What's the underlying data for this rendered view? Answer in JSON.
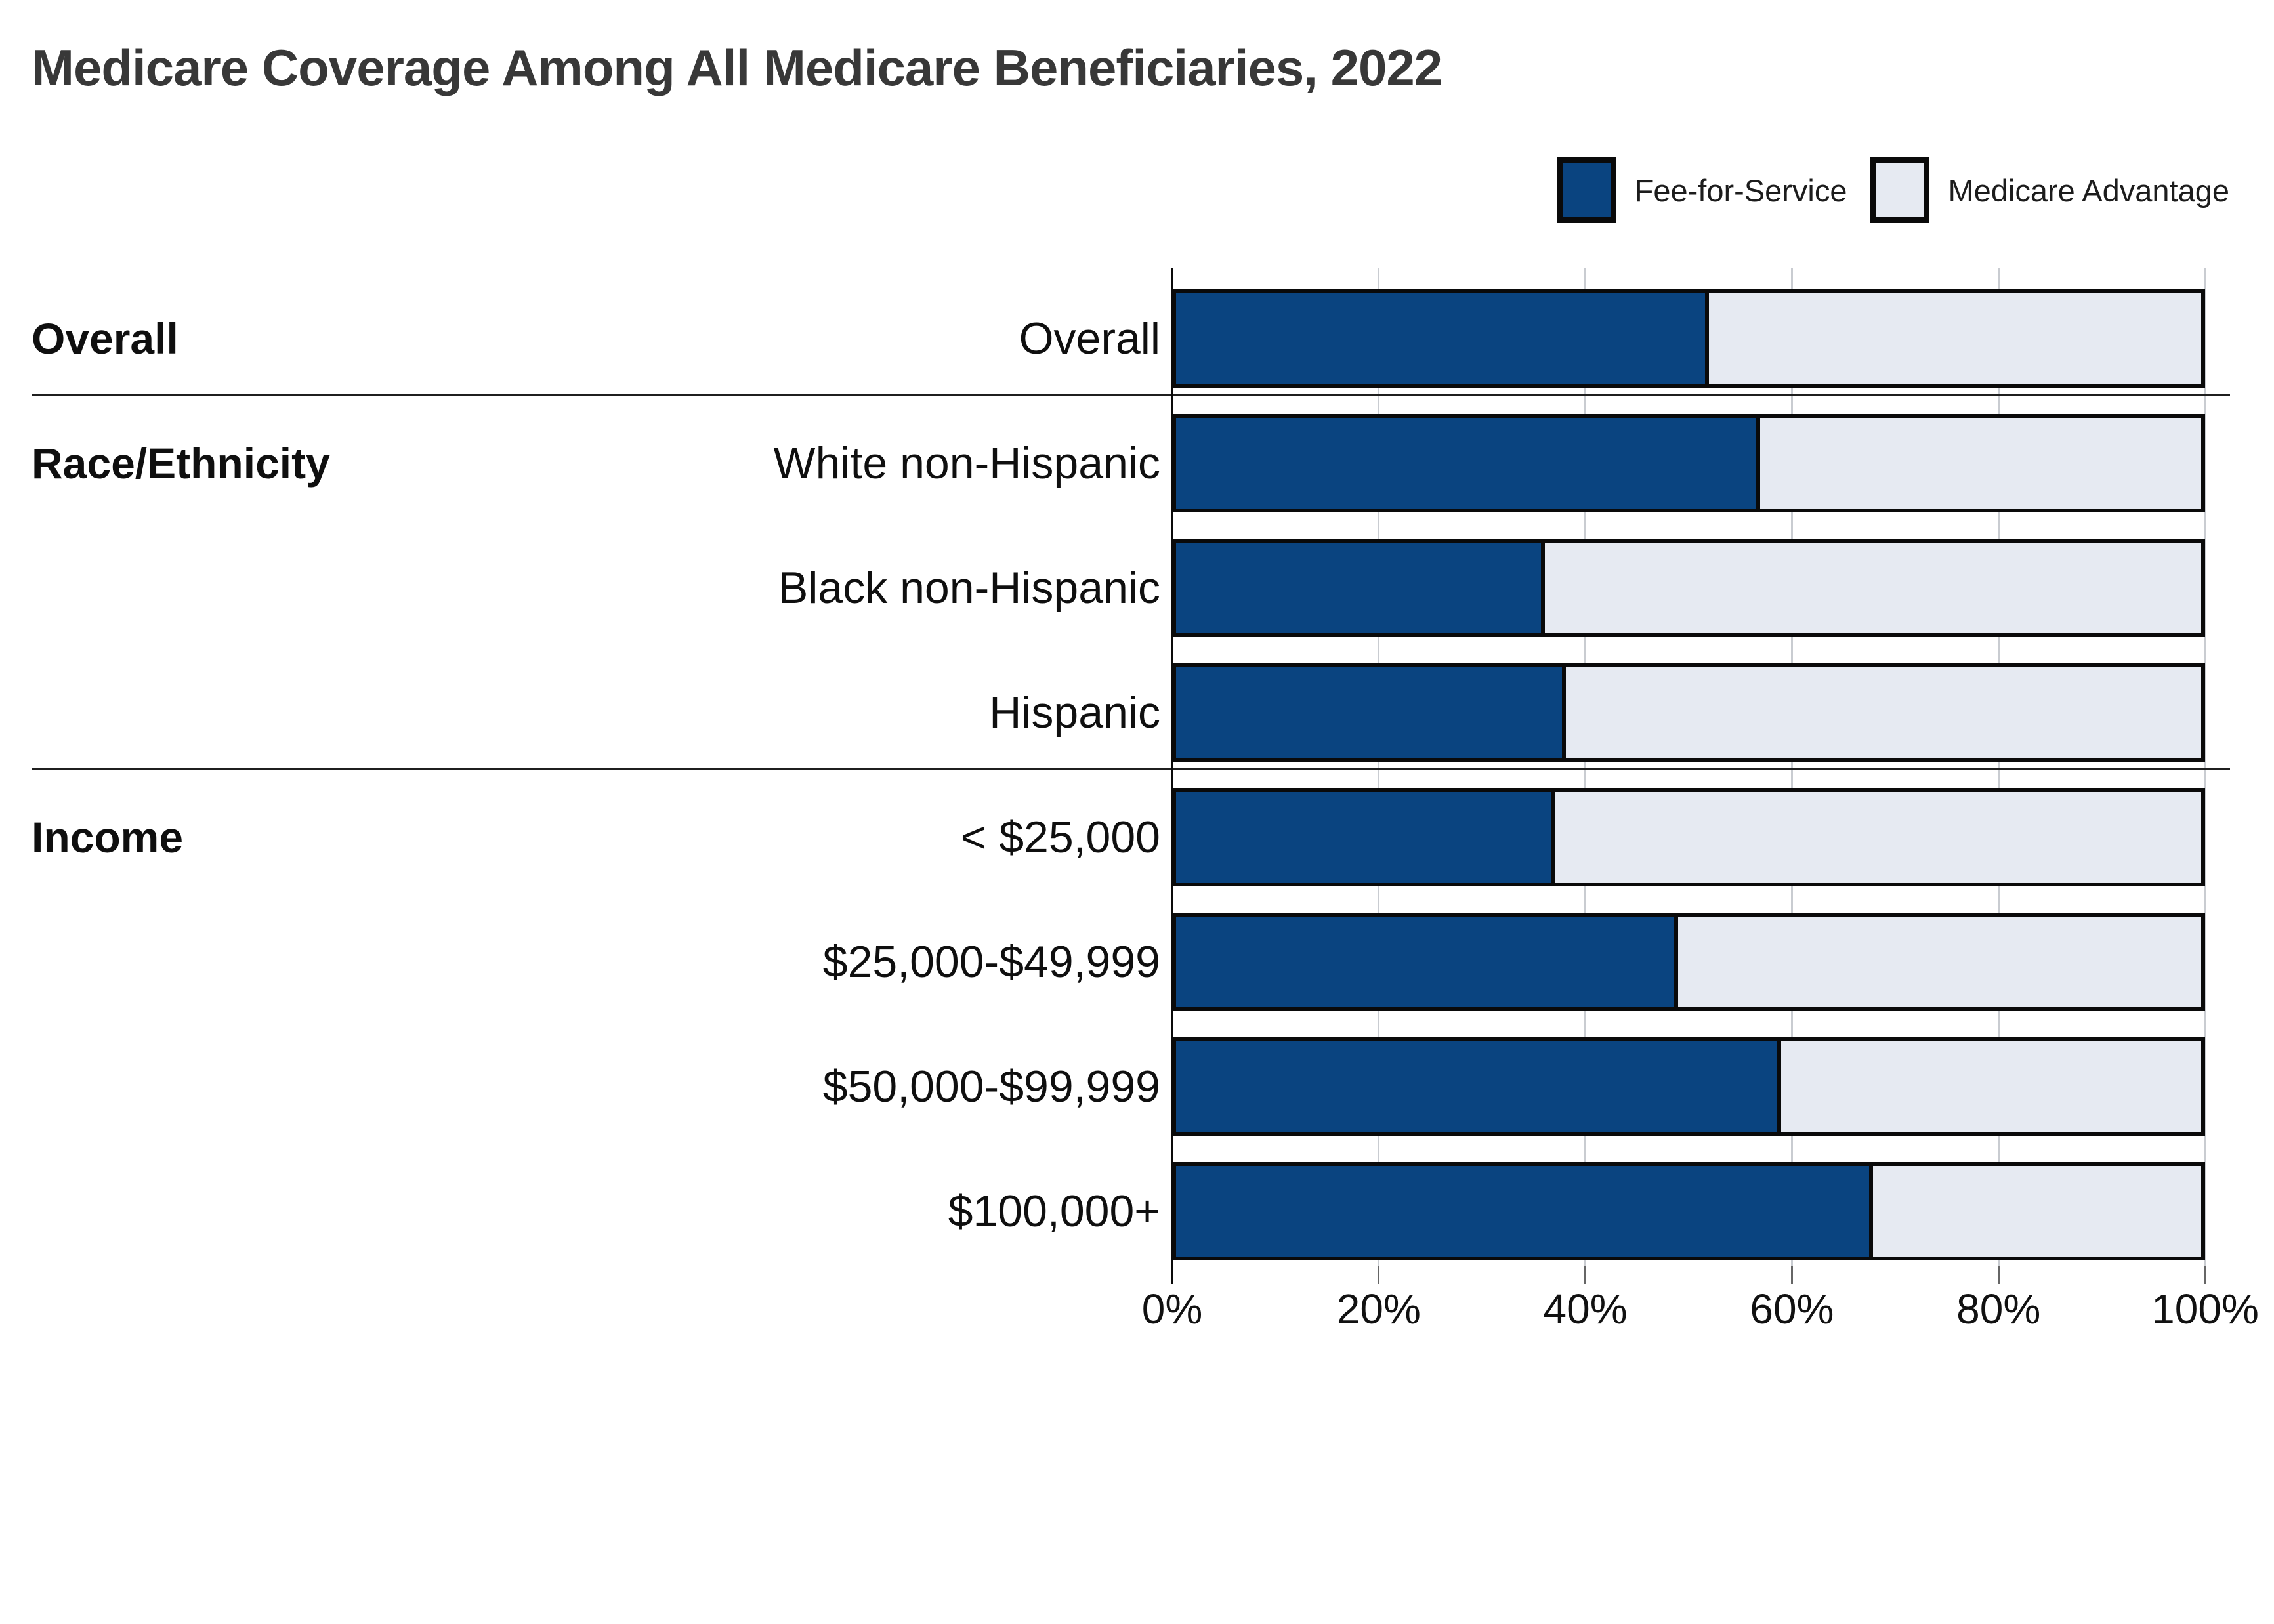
{
  "title": "Medicare Coverage Among All Medicare Beneficiaries, 2022",
  "legend": {
    "items": [
      {
        "label": "Fee-for-Service",
        "color": "#0A4480"
      },
      {
        "label": "Medicare Advantage",
        "color": "#E6EAF2"
      }
    ]
  },
  "colors": {
    "ffs_fill": "#0A4480",
    "ma_fill": "#E6EAF2",
    "bar_border": "#0a0a0a",
    "gridline": "#c9ccd1",
    "title_text": "#383838"
  },
  "chart_data": {
    "type": "bar",
    "orientation": "horizontal",
    "stacked": true,
    "title": "Medicare Coverage Among All Medicare Beneficiaries, 2022",
    "categories": [
      "Overall",
      "White non-Hispanic",
      "Black non-Hispanic",
      "Hispanic",
      "< $25,000",
      "$25,000-$49,999",
      "$50,000-$99,999",
      "$100,000+"
    ],
    "series": [
      {
        "name": "Fee-for-Service",
        "values": [
          52,
          57,
          36,
          38,
          37,
          49,
          59,
          68
        ],
        "color": "#0A4480"
      },
      {
        "name": "Medicare Advantage",
        "values": [
          48,
          43,
          64,
          62,
          63,
          51,
          41,
          32
        ],
        "color": "#E6EAF2"
      }
    ],
    "groups": [
      {
        "label": "Overall",
        "rows": [
          0
        ]
      },
      {
        "label": "Race/Ethnicity",
        "rows": [
          1,
          2,
          3
        ]
      },
      {
        "label": "Income",
        "rows": [
          4,
          5,
          6,
          7
        ]
      }
    ],
    "x_axis": {
      "min": 0,
      "max": 100,
      "tick_labels": [
        "0%",
        "20%",
        "40%",
        "60%",
        "80%",
        "100%"
      ],
      "unit": "%"
    },
    "legend_position": "top-right",
    "grid": true
  }
}
